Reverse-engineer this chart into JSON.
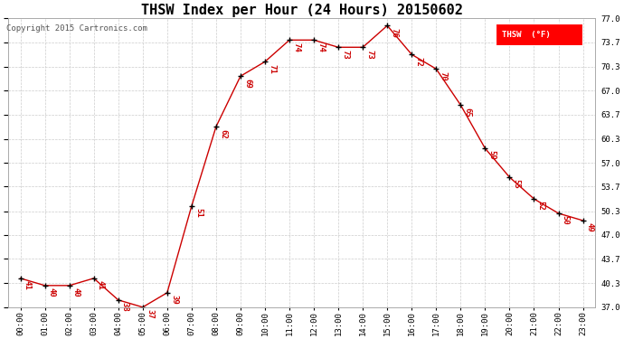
{
  "title": "THSW Index per Hour (24 Hours) 20150602",
  "copyright": "Copyright 2015 Cartronics.com",
  "legend_label": "THSW  (°F)",
  "hours": [
    "00:00",
    "01:00",
    "02:00",
    "03:00",
    "04:00",
    "05:00",
    "06:00",
    "07:00",
    "08:00",
    "09:00",
    "10:00",
    "11:00",
    "12:00",
    "13:00",
    "14:00",
    "15:00",
    "16:00",
    "17:00",
    "18:00",
    "19:00",
    "20:00",
    "21:00",
    "22:00",
    "23:00"
  ],
  "values": [
    41,
    40,
    40,
    41,
    38,
    37,
    39,
    51,
    62,
    69,
    71,
    74,
    74,
    73,
    73,
    76,
    72,
    70,
    65,
    59,
    55,
    52,
    50,
    49
  ],
  "line_color": "#cc0000",
  "marker_color": "#000000",
  "label_color": "#cc0000",
  "background_color": "#ffffff",
  "grid_color": "#cccccc",
  "ylim": [
    37.0,
    77.0
  ],
  "yticks": [
    37.0,
    40.3,
    43.7,
    47.0,
    50.3,
    53.7,
    57.0,
    60.3,
    63.7,
    67.0,
    70.3,
    73.7,
    77.0
  ],
  "ytick_labels": [
    "37.0",
    "40.3",
    "43.7",
    "47.0",
    "50.3",
    "53.7",
    "57.0",
    "60.3",
    "63.7",
    "67.0",
    "70.3",
    "73.7",
    "77.0"
  ],
  "title_fontsize": 11,
  "label_fontsize": 6.5,
  "tick_fontsize": 6.5,
  "copyright_fontsize": 6.5
}
